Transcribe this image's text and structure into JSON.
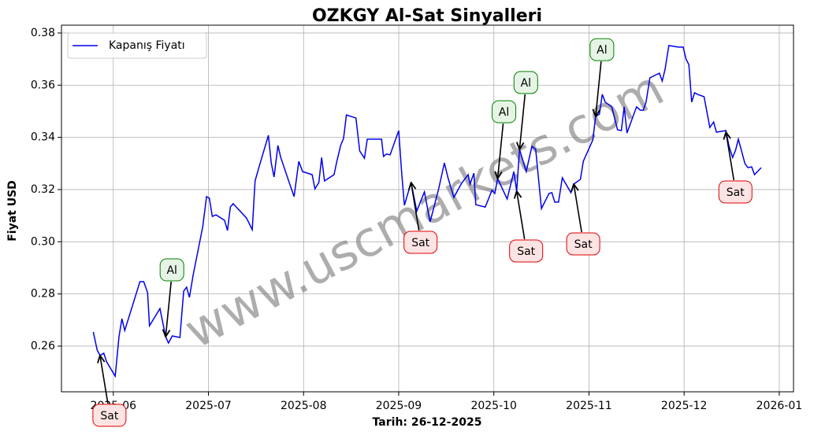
{
  "chart_data": {
    "type": "line",
    "title": "OZKGY Al-Sat Sinyalleri",
    "xlabel": "Tarih: 26-12-2025",
    "ylabel": "Fiyat USD",
    "watermark": "www.uscmarkets.com",
    "legend": "upper left",
    "grid": true,
    "xlim": [
      5.455,
      13.15
    ],
    "xticks": [
      {
        "value": 6,
        "label": "2025-06"
      },
      {
        "value": 7,
        "label": "2025-07"
      },
      {
        "value": 8,
        "label": "2025-08"
      },
      {
        "value": 9,
        "label": "2025-09"
      },
      {
        "value": 10,
        "label": "2025-10"
      },
      {
        "value": 11,
        "label": "2025-11"
      },
      {
        "value": 12,
        "label": "2025-12"
      },
      {
        "value": 13,
        "label": "2026-01"
      }
    ],
    "ylim": [
      0.2425,
      0.383
    ],
    "yticks": [
      0.26,
      0.28,
      {
        "value": 0.3,
        "label": "0.30"
      },
      0.32,
      0.34,
      0.36,
      0.38
    ],
    "x": [
      5.79,
      5.83,
      5.86,
      5.9,
      5.93,
      6.02,
      6.06,
      6.09,
      6.12,
      6.28,
      6.32,
      6.36,
      6.38,
      6.49,
      6.55,
      6.58,
      6.62,
      6.7,
      6.74,
      6.77,
      6.8,
      6.84,
      6.94,
      6.98,
      7.01,
      7.04,
      7.08,
      7.17,
      7.2,
      7.23,
      7.26,
      7.4,
      7.46,
      7.49,
      7.53,
      7.63,
      7.66,
      7.69,
      7.73,
      7.76,
      7.86,
      7.9,
      7.95,
      7.99,
      8.09,
      8.12,
      8.16,
      8.19,
      8.22,
      8.32,
      8.35,
      8.39,
      8.42,
      8.45,
      8.55,
      8.59,
      8.64,
      8.67,
      8.79,
      8.82,
      8.84,
      8.87,
      8.91,
      9.0,
      9.03,
      9.06,
      9.13,
      9.19,
      9.27,
      9.33,
      9.42,
      9.48,
      9.52,
      9.58,
      9.66,
      9.73,
      9.75,
      9.79,
      9.81,
      9.91,
      9.98,
      10.01,
      10.04,
      10.14,
      10.21,
      10.24,
      10.27,
      10.34,
      10.4,
      10.44,
      10.5,
      10.58,
      10.61,
      10.64,
      10.68,
      10.72,
      10.81,
      10.84,
      10.91,
      10.94,
      11.04,
      11.07,
      11.11,
      11.14,
      11.17,
      11.24,
      11.3,
      11.34,
      11.37,
      11.4,
      11.5,
      11.54,
      11.57,
      11.6,
      11.64,
      11.74,
      11.77,
      11.8,
      11.84,
      11.94,
      11.99,
      12.02,
      12.05,
      12.08,
      12.11,
      12.14,
      12.21,
      12.27,
      12.31,
      12.34,
      12.44,
      12.47,
      12.51,
      12.54,
      12.57,
      12.64,
      12.67,
      12.71,
      12.74,
      12.81
    ],
    "series": [
      {
        "name": "Kapanış Fiyatı",
        "color": "#0000ee",
        "values": [
          0.2654,
          0.2585,
          0.2564,
          0.2573,
          0.254,
          0.2485,
          0.2636,
          0.2705,
          0.266,
          0.2847,
          0.2847,
          0.2805,
          0.2678,
          0.2744,
          0.2636,
          0.2612,
          0.2639,
          0.2633,
          0.2811,
          0.2826,
          0.2787,
          0.2874,
          0.3058,
          0.3173,
          0.3167,
          0.3097,
          0.3103,
          0.3082,
          0.3043,
          0.3133,
          0.3146,
          0.3091,
          0.3046,
          0.3233,
          0.3284,
          0.3408,
          0.3302,
          0.3248,
          0.3369,
          0.3323,
          0.3215,
          0.3173,
          0.3308,
          0.3269,
          0.3257,
          0.3203,
          0.3227,
          0.3323,
          0.3233,
          0.3257,
          0.3308,
          0.3369,
          0.3396,
          0.3486,
          0.3474,
          0.3348,
          0.332,
          0.3393,
          0.3393,
          0.3393,
          0.3327,
          0.3336,
          0.3333,
          0.3426,
          0.3269,
          0.314,
          0.3227,
          0.3118,
          0.3191,
          0.3076,
          0.3203,
          0.3302,
          0.3242,
          0.317,
          0.3224,
          0.3257,
          0.3221,
          0.3263,
          0.3142,
          0.3133,
          0.3197,
          0.3185,
          0.3242,
          0.3164,
          0.3269,
          0.3194,
          0.3354,
          0.3269,
          0.3366,
          0.3354,
          0.3127,
          0.3185,
          0.3188,
          0.3152,
          0.3152,
          0.3245,
          0.3188,
          0.3221,
          0.3239,
          0.3308,
          0.339,
          0.348,
          0.3489,
          0.3565,
          0.3535,
          0.3517,
          0.3429,
          0.3426,
          0.3517,
          0.3417,
          0.3517,
          0.3504,
          0.3504,
          0.3535,
          0.3628,
          0.3646,
          0.3616,
          0.3661,
          0.3752,
          0.3746,
          0.3746,
          0.37,
          0.3679,
          0.3535,
          0.3571,
          0.3565,
          0.3556,
          0.3438,
          0.3459,
          0.342,
          0.3426,
          0.3369,
          0.3323,
          0.335,
          0.3393,
          0.3299,
          0.3284,
          0.3287,
          0.3257,
          0.3284
        ]
      }
    ],
    "annotations": [
      {
        "label": "Sat",
        "x": 5.86,
        "y": 0.2564
      },
      {
        "label": "Al",
        "x": 6.55,
        "y": 0.2636
      },
      {
        "label": "Sat",
        "x": 9.13,
        "y": 0.3227
      },
      {
        "label": "Al",
        "x": 10.04,
        "y": 0.3242
      },
      {
        "label": "Sat",
        "x": 10.24,
        "y": 0.3194
      },
      {
        "label": "Al",
        "x": 10.27,
        "y": 0.3354
      },
      {
        "label": "Sat",
        "x": 10.84,
        "y": 0.3221
      },
      {
        "label": "Al",
        "x": 11.07,
        "y": 0.348
      },
      {
        "label": "Sat",
        "x": 12.44,
        "y": 0.342
      }
    ]
  }
}
